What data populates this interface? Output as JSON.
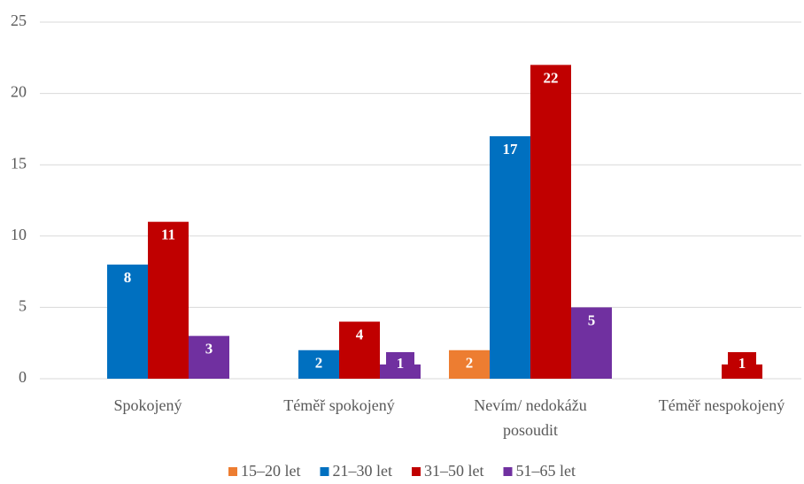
{
  "chart_data": {
    "type": "bar",
    "categories": [
      "Spokojený",
      "Téměř spokojený",
      "Nevím/ nedokážu posoudit",
      "Téměř nespokojený"
    ],
    "series": [
      {
        "name": "15–20 let",
        "color": "#ed7d31",
        "values": [
          null,
          null,
          2,
          null
        ]
      },
      {
        "name": "21–30 let",
        "color": "#0070c0",
        "values": [
          8,
          2,
          17,
          null
        ]
      },
      {
        "name": "31–50 let",
        "color": "#c00000",
        "values": [
          11,
          4,
          22,
          1
        ]
      },
      {
        "name": "51–65 let",
        "color": "#7030a0",
        "values": [
          3,
          1,
          5,
          null
        ]
      }
    ],
    "ylim": [
      0,
      25
    ],
    "yticks": [
      0,
      5,
      10,
      15,
      20,
      25
    ],
    "grid": true,
    "legend": "bottom"
  }
}
